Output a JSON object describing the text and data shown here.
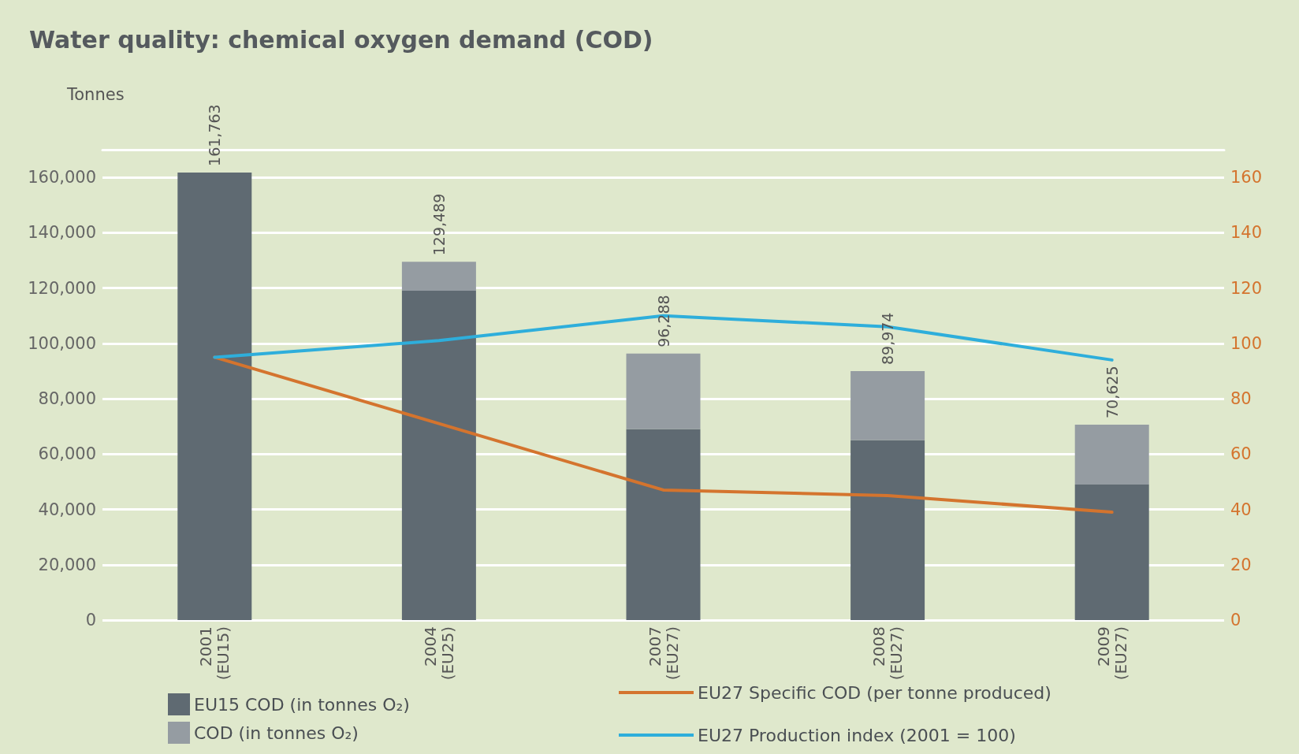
{
  "chart_data": {
    "type": "bar",
    "title": "Water quality: chemical oxygen demand (COD)",
    "ylabel": "Tonnes",
    "categories": [
      "2001\n(EU15)",
      "2004\n(EU25)",
      "2007\n(EU27)",
      "2008\n(EU27)",
      "2009\n(EU27)"
    ],
    "stacked": true,
    "series": [
      {
        "name": "EU15 COD (in tonnes O₂)",
        "color": "#5f6a72",
        "values": [
          161763,
          119000,
          69000,
          65000,
          49000
        ]
      },
      {
        "name": "COD (in tonnes O₂)",
        "color": "#959ca2",
        "values": [
          null,
          10489,
          27288,
          24974,
          21625
        ]
      },
      {
        "name": "EU27 Specific COD (per tonne produced)",
        "type": "line",
        "axis": "y2",
        "color": "#d4742e",
        "values": [
          95,
          71,
          47,
          45,
          39
        ]
      },
      {
        "name": "EU27 Production index (2001 = 100)",
        "type": "line",
        "axis": "y2",
        "color": "#2eaedb",
        "values": [
          95,
          101,
          110,
          106,
          94
        ]
      }
    ],
    "totals": [
      "161,763",
      "129,489",
      "96,288",
      "89,974",
      "70,625"
    ],
    "ylim": [
      0,
      170000
    ],
    "yticks": [
      0,
      {
        "value": 20000,
        "label": "20,000"
      },
      {
        "value": 40000,
        "label": "40,000"
      },
      {
        "value": 60000,
        "label": "60,000"
      },
      {
        "value": 80000,
        "label": "80,000"
      },
      {
        "value": 100000,
        "label": "100,000"
      },
      {
        "value": 120000,
        "label": "120,000"
      },
      {
        "value": 140000,
        "label": "140,000"
      },
      {
        "value": 160000,
        "label": "160,000"
      }
    ],
    "y2lim": [
      0,
      170
    ],
    "y2ticks": [
      0,
      20,
      40,
      60,
      80,
      100,
      120,
      140,
      160
    ],
    "grid": "y",
    "legend": "bottom",
    "marker": "none",
    "line_style": "solid"
  }
}
